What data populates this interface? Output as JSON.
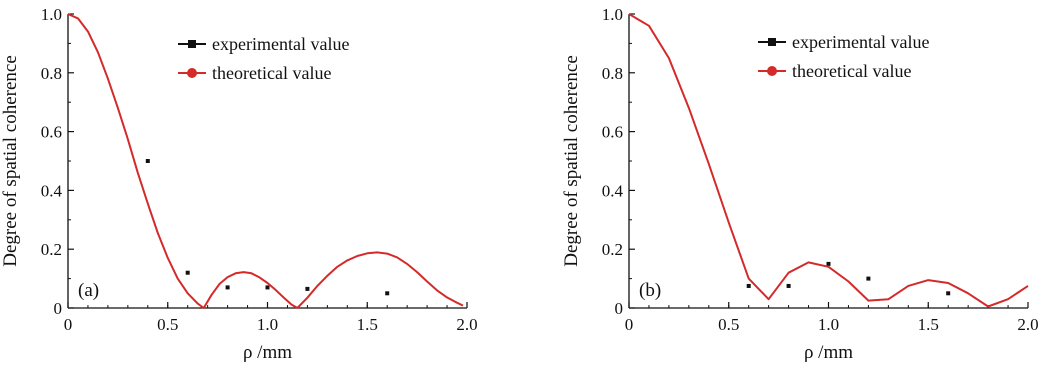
{
  "chart_data": [
    {
      "type": "line",
      "panel_label": "(a)",
      "xlabel": "ρ /mm",
      "ylabel": "Degree of spatial coherence",
      "xlim": [
        0,
        2.0
      ],
      "ylim": [
        0,
        1.0
      ],
      "x_ticks": [
        "0",
        "0.5",
        "1.0",
        "1.5",
        "2.0"
      ],
      "y_ticks": [
        "0",
        "0.2",
        "0.4",
        "0.6",
        "0.8",
        "1.0"
      ],
      "legend_position": "top-right",
      "grid": false,
      "series": [
        {
          "name": "experimental value",
          "style": "scatter",
          "color": "#111111",
          "x": [
            0.4,
            0.6,
            0.8,
            1.0,
            1.2,
            1.6
          ],
          "y": [
            0.5,
            0.12,
            0.07,
            0.07,
            0.065,
            0.05
          ]
        },
        {
          "name": "theoretical value",
          "style": "line",
          "color": "#d42a2a",
          "x": [
            0,
            0.05,
            0.1,
            0.15,
            0.2,
            0.25,
            0.3,
            0.35,
            0.4,
            0.45,
            0.5,
            0.55,
            0.6,
            0.65,
            0.68,
            0.72,
            0.76,
            0.8,
            0.84,
            0.88,
            0.92,
            0.96,
            1.0,
            1.04,
            1.08,
            1.12,
            1.15,
            1.2,
            1.25,
            1.3,
            1.35,
            1.4,
            1.45,
            1.5,
            1.55,
            1.6,
            1.65,
            1.7,
            1.75,
            1.8,
            1.85,
            1.9,
            1.95,
            1.98
          ],
          "y": [
            1.0,
            0.985,
            0.94,
            0.87,
            0.78,
            0.68,
            0.575,
            0.46,
            0.355,
            0.255,
            0.17,
            0.1,
            0.05,
            0.015,
            0.0,
            0.045,
            0.082,
            0.105,
            0.118,
            0.122,
            0.118,
            0.104,
            0.085,
            0.062,
            0.036,
            0.012,
            0.0,
            0.035,
            0.075,
            0.11,
            0.14,
            0.162,
            0.177,
            0.186,
            0.189,
            0.185,
            0.172,
            0.15,
            0.122,
            0.09,
            0.06,
            0.036,
            0.018,
            0.008
          ]
        }
      ]
    },
    {
      "type": "line",
      "panel_label": "(b)",
      "xlabel": "ρ /mm",
      "ylabel": "Degree of spatial coherence",
      "xlim": [
        0,
        2.0
      ],
      "ylim": [
        0,
        1.0
      ],
      "x_ticks": [
        "0",
        "0.5",
        "1.0",
        "1.5",
        "2.0"
      ],
      "y_ticks": [
        "0",
        "0.2",
        "0.4",
        "0.6",
        "0.8",
        "1.0"
      ],
      "legend_position": "top-right",
      "grid": false,
      "series": [
        {
          "name": "experimental value",
          "style": "scatter",
          "color": "#111111",
          "x": [
            0.6,
            0.8,
            1.0,
            1.2,
            1.6
          ],
          "y": [
            0.075,
            0.075,
            0.15,
            0.1,
            0.05
          ]
        },
        {
          "name": "theoretical value",
          "style": "line",
          "color": "#d42a2a",
          "x": [
            0,
            0.1,
            0.2,
            0.3,
            0.4,
            0.5,
            0.6,
            0.7,
            0.8,
            0.9,
            1.0,
            1.1,
            1.2,
            1.3,
            1.4,
            1.5,
            1.6,
            1.7,
            1.8,
            1.9,
            2.0
          ],
          "y": [
            1.0,
            0.96,
            0.85,
            0.68,
            0.49,
            0.29,
            0.1,
            0.03,
            0.12,
            0.155,
            0.14,
            0.09,
            0.025,
            0.03,
            0.075,
            0.095,
            0.085,
            0.05,
            0.005,
            0.03,
            0.075
          ]
        }
      ]
    }
  ]
}
